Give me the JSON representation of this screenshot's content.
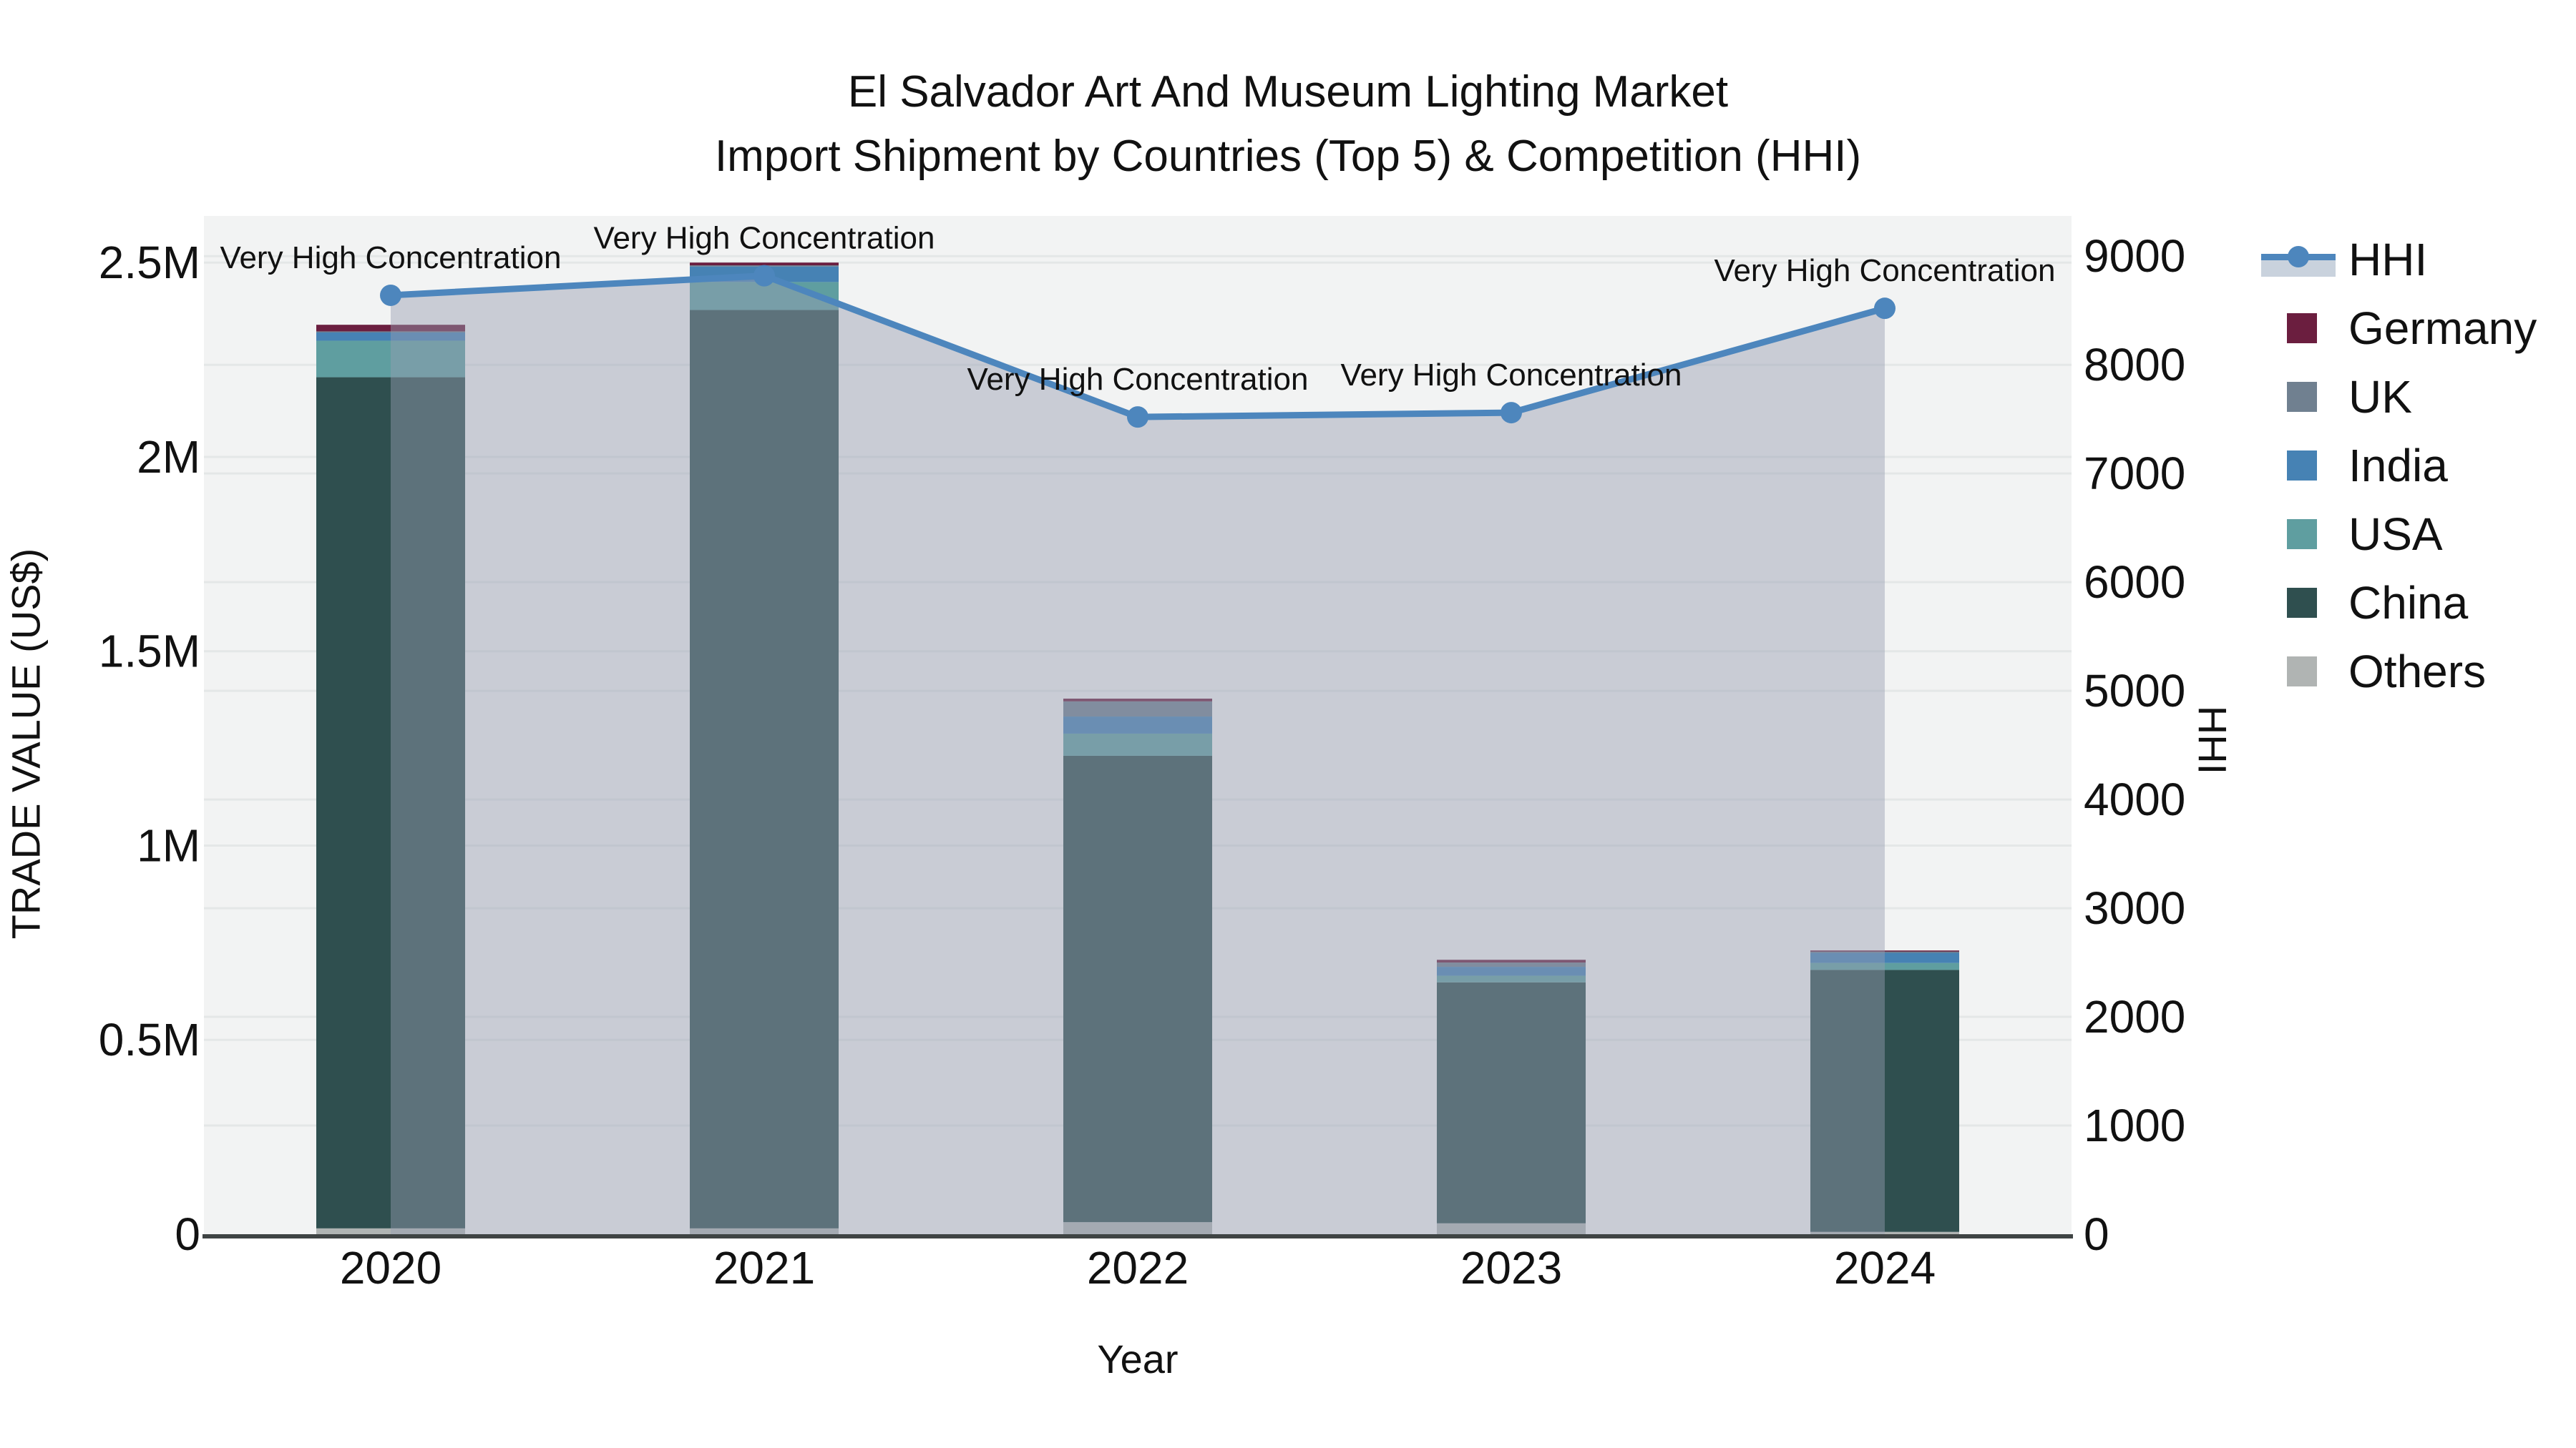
{
  "title": {
    "line1": "El Salvador Art And Museum Lighting Market",
    "line2": "Import Shipment by Countries (Top 5) & Competition (HHI)"
  },
  "chart_data": {
    "type": "bar+line",
    "categories": [
      "2020",
      "2021",
      "2022",
      "2023",
      "2024"
    ],
    "stack_note": "series listed bottom-to-top of stack, values in US$",
    "series": [
      {
        "name": "Others",
        "color": "#b0b4b3",
        "values": [
          15000,
          15000,
          31000,
          28000,
          6000
        ]
      },
      {
        "name": "China",
        "color": "#2f4f4f",
        "values": [
          2190000,
          2363000,
          1200000,
          620000,
          674000
        ]
      },
      {
        "name": "USA",
        "color": "#5f9ea0",
        "values": [
          94000,
          72000,
          57000,
          17000,
          18000
        ]
      },
      {
        "name": "India",
        "color": "#4682b4",
        "values": [
          22000,
          40000,
          44000,
          23000,
          26000
        ]
      },
      {
        "name": "UK",
        "color": "#708090",
        "values": [
          2000,
          3000,
          39000,
          11000,
          4000
        ]
      },
      {
        "name": "Germany",
        "color": "#6b1e3f",
        "values": [
          17000,
          7000,
          7000,
          7000,
          2000
        ]
      }
    ],
    "line_series": {
      "name": "HHI",
      "color": "#4d86bd",
      "fill_color": "rgba(151,158,178,0.45)",
      "values": [
        8640,
        8820,
        7520,
        7560,
        8520
      ]
    },
    "annotations": [
      "Very High Concentration",
      "Very High Concentration",
      "Very High Concentration",
      "Very High Concentration",
      "Very High Concentration"
    ],
    "xlabel": "Year",
    "ylabel_left": "TRADE VALUE (US$)",
    "ylabel_right": "HHI",
    "yticks_left": [
      {
        "v": 0,
        "label": "0"
      },
      {
        "v": 500000,
        "label": "0.5M"
      },
      {
        "v": 1000000,
        "label": "1M"
      },
      {
        "v": 1500000,
        "label": "1.5M"
      },
      {
        "v": 2000000,
        "label": "2M"
      },
      {
        "v": 2500000,
        "label": "2.5M"
      }
    ],
    "yticks_right": [
      {
        "v": 0,
        "label": "0"
      },
      {
        "v": 1000,
        "label": "1000"
      },
      {
        "v": 2000,
        "label": "2000"
      },
      {
        "v": 3000,
        "label": "3000"
      },
      {
        "v": 4000,
        "label": "4000"
      },
      {
        "v": 5000,
        "label": "5000"
      },
      {
        "v": 6000,
        "label": "6000"
      },
      {
        "v": 7000,
        "label": "7000"
      },
      {
        "v": 8000,
        "label": "8000"
      },
      {
        "v": 9000,
        "label": "9000"
      }
    ],
    "ylim_left": [
      0,
      2620000
    ],
    "ylim_right": [
      0,
      9370
    ],
    "grid": true,
    "plot_bg": "#f2f3f3",
    "grid_color": "#e4e7e7",
    "axisline_color": "#3f4444",
    "text_color": "#111111",
    "legend_position": "right"
  },
  "legend": {
    "items": [
      {
        "key": "hhi",
        "label": "HHI",
        "type": "line",
        "color": "#4d86bd",
        "fill": "#c9d2dd"
      },
      {
        "key": "germany",
        "label": "Germany",
        "type": "swatch",
        "color": "#6b1e3f"
      },
      {
        "key": "uk",
        "label": "UK",
        "type": "swatch",
        "color": "#708090"
      },
      {
        "key": "india",
        "label": "India",
        "type": "swatch",
        "color": "#4682b4"
      },
      {
        "key": "usa",
        "label": "USA",
        "type": "swatch",
        "color": "#5f9ea0"
      },
      {
        "key": "china",
        "label": "China",
        "type": "swatch",
        "color": "#2f4f4f"
      },
      {
        "key": "others",
        "label": "Others",
        "type": "swatch",
        "color": "#b0b4b3"
      }
    ]
  }
}
